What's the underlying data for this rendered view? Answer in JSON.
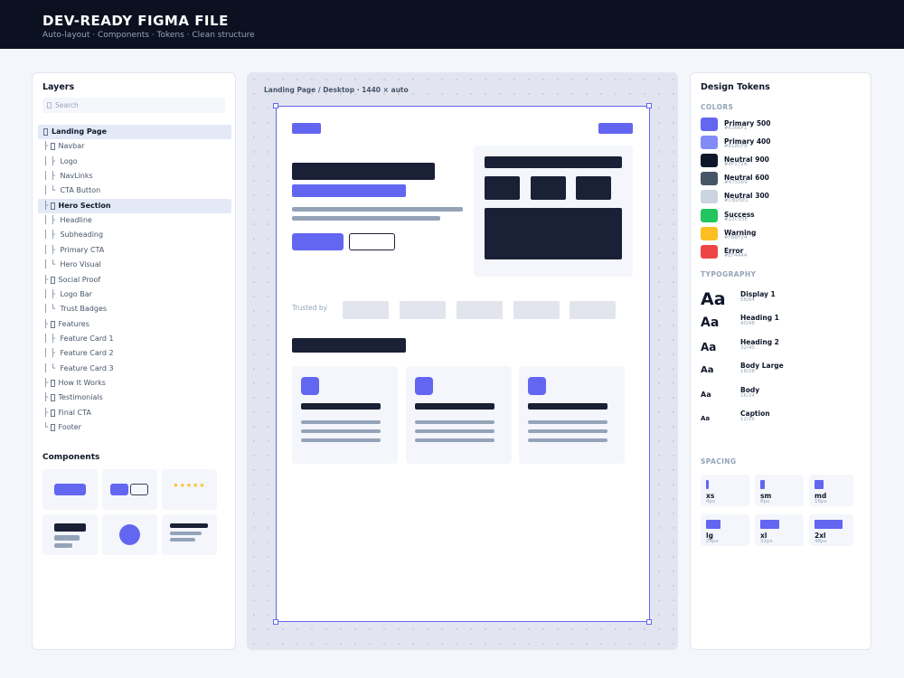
{
  "header": {
    "title": "DEV-READY FIGMA FILE",
    "subtitle": "Auto-layout · Components · Tokens · Clean structure"
  },
  "layers": {
    "title": "Layers",
    "search": "Search",
    "items": [
      {
        "name": "Landing Page",
        "frame": true,
        "selected": true
      },
      {
        "tree": "├",
        "name": "Navbar",
        "frame": true
      },
      {
        "tree": "│ ├",
        "name": "Logo"
      },
      {
        "tree": "│ ├",
        "name": "NavLinks"
      },
      {
        "tree": "│ └",
        "name": "CTA Button"
      },
      {
        "tree": "├",
        "name": "Hero Section",
        "frame": true,
        "selected": true
      },
      {
        "tree": "│ ├",
        "name": "Headline"
      },
      {
        "tree": "│ ├",
        "name": "Subheading"
      },
      {
        "tree": "│ ├",
        "name": "Primary CTA"
      },
      {
        "tree": "│ └",
        "name": "Hero Visual"
      },
      {
        "tree": "├",
        "name": "Social Proof",
        "frame": true
      },
      {
        "tree": "│ ├",
        "name": "Logo Bar"
      },
      {
        "tree": "│ └",
        "name": "Trust Badges"
      },
      {
        "tree": "├",
        "name": "Features",
        "frame": true
      },
      {
        "tree": "│ ├",
        "name": "Feature Card 1"
      },
      {
        "tree": "│ ├",
        "name": "Feature Card 2"
      },
      {
        "tree": "│ └",
        "name": "Feature Card 3"
      },
      {
        "tree": "├",
        "name": "How It Works",
        "frame": true
      },
      {
        "tree": "├",
        "name": "Testimonials",
        "frame": true
      },
      {
        "tree": "├",
        "name": "Final CTA",
        "frame": true
      },
      {
        "tree": "└",
        "name": "Footer",
        "frame": true
      }
    ]
  },
  "components": {
    "title": "Components",
    "stars": "★★★★★"
  },
  "canvas": {
    "label": "Landing Page / Desktop · 1440 × auto",
    "trusted_by": "Trusted by"
  },
  "tokens": {
    "title": "Design Tokens",
    "colors_heading": "COLORS",
    "colors": [
      {
        "name": "Primary 500",
        "hex": "#6366F1"
      },
      {
        "name": "Primary 400",
        "hex": "#818CF8"
      },
      {
        "name": "Neutral 900",
        "hex": "#0F172A"
      },
      {
        "name": "Neutral 600",
        "hex": "#475569"
      },
      {
        "name": "Neutral 300",
        "hex": "#CBD5E1"
      },
      {
        "name": "Success",
        "hex": "#22C55E"
      },
      {
        "name": "Warning",
        "hex": "#FBBF24"
      },
      {
        "name": "Error",
        "hex": "#EF4444"
      }
    ],
    "typography_heading": "TYPOGRAPHY",
    "typography": [
      {
        "sample": "Aa",
        "name": "Display 1",
        "spec": "56/64"
      },
      {
        "sample": "Aa",
        "name": "Heading 1",
        "spec": "40/48"
      },
      {
        "sample": "Aa",
        "name": "Heading 2",
        "spec": "32/40"
      },
      {
        "sample": "Aa",
        "name": "Body Large",
        "spec": "18/28"
      },
      {
        "sample": "Aa",
        "name": "Body",
        "spec": "16/24"
      },
      {
        "sample": "Aa",
        "name": "Caption",
        "spec": "12/16"
      }
    ],
    "spacing_heading": "SPACING",
    "spacing": [
      {
        "name": "xs",
        "size": {
          "value": 4,
          "label": "4px"
        }
      },
      {
        "name": "sm",
        "size": {
          "value": 8,
          "label": "8px"
        }
      },
      {
        "name": "md",
        "size": {
          "value": 16,
          "label": "16px"
        }
      },
      {
        "name": "lg",
        "size": {
          "value": 24,
          "label": "24px"
        }
      },
      {
        "name": "xl",
        "size": {
          "value": 32,
          "label": "32px"
        }
      },
      {
        "name": "2xl",
        "size": {
          "value": 48,
          "label": "48px"
        }
      }
    ]
  }
}
